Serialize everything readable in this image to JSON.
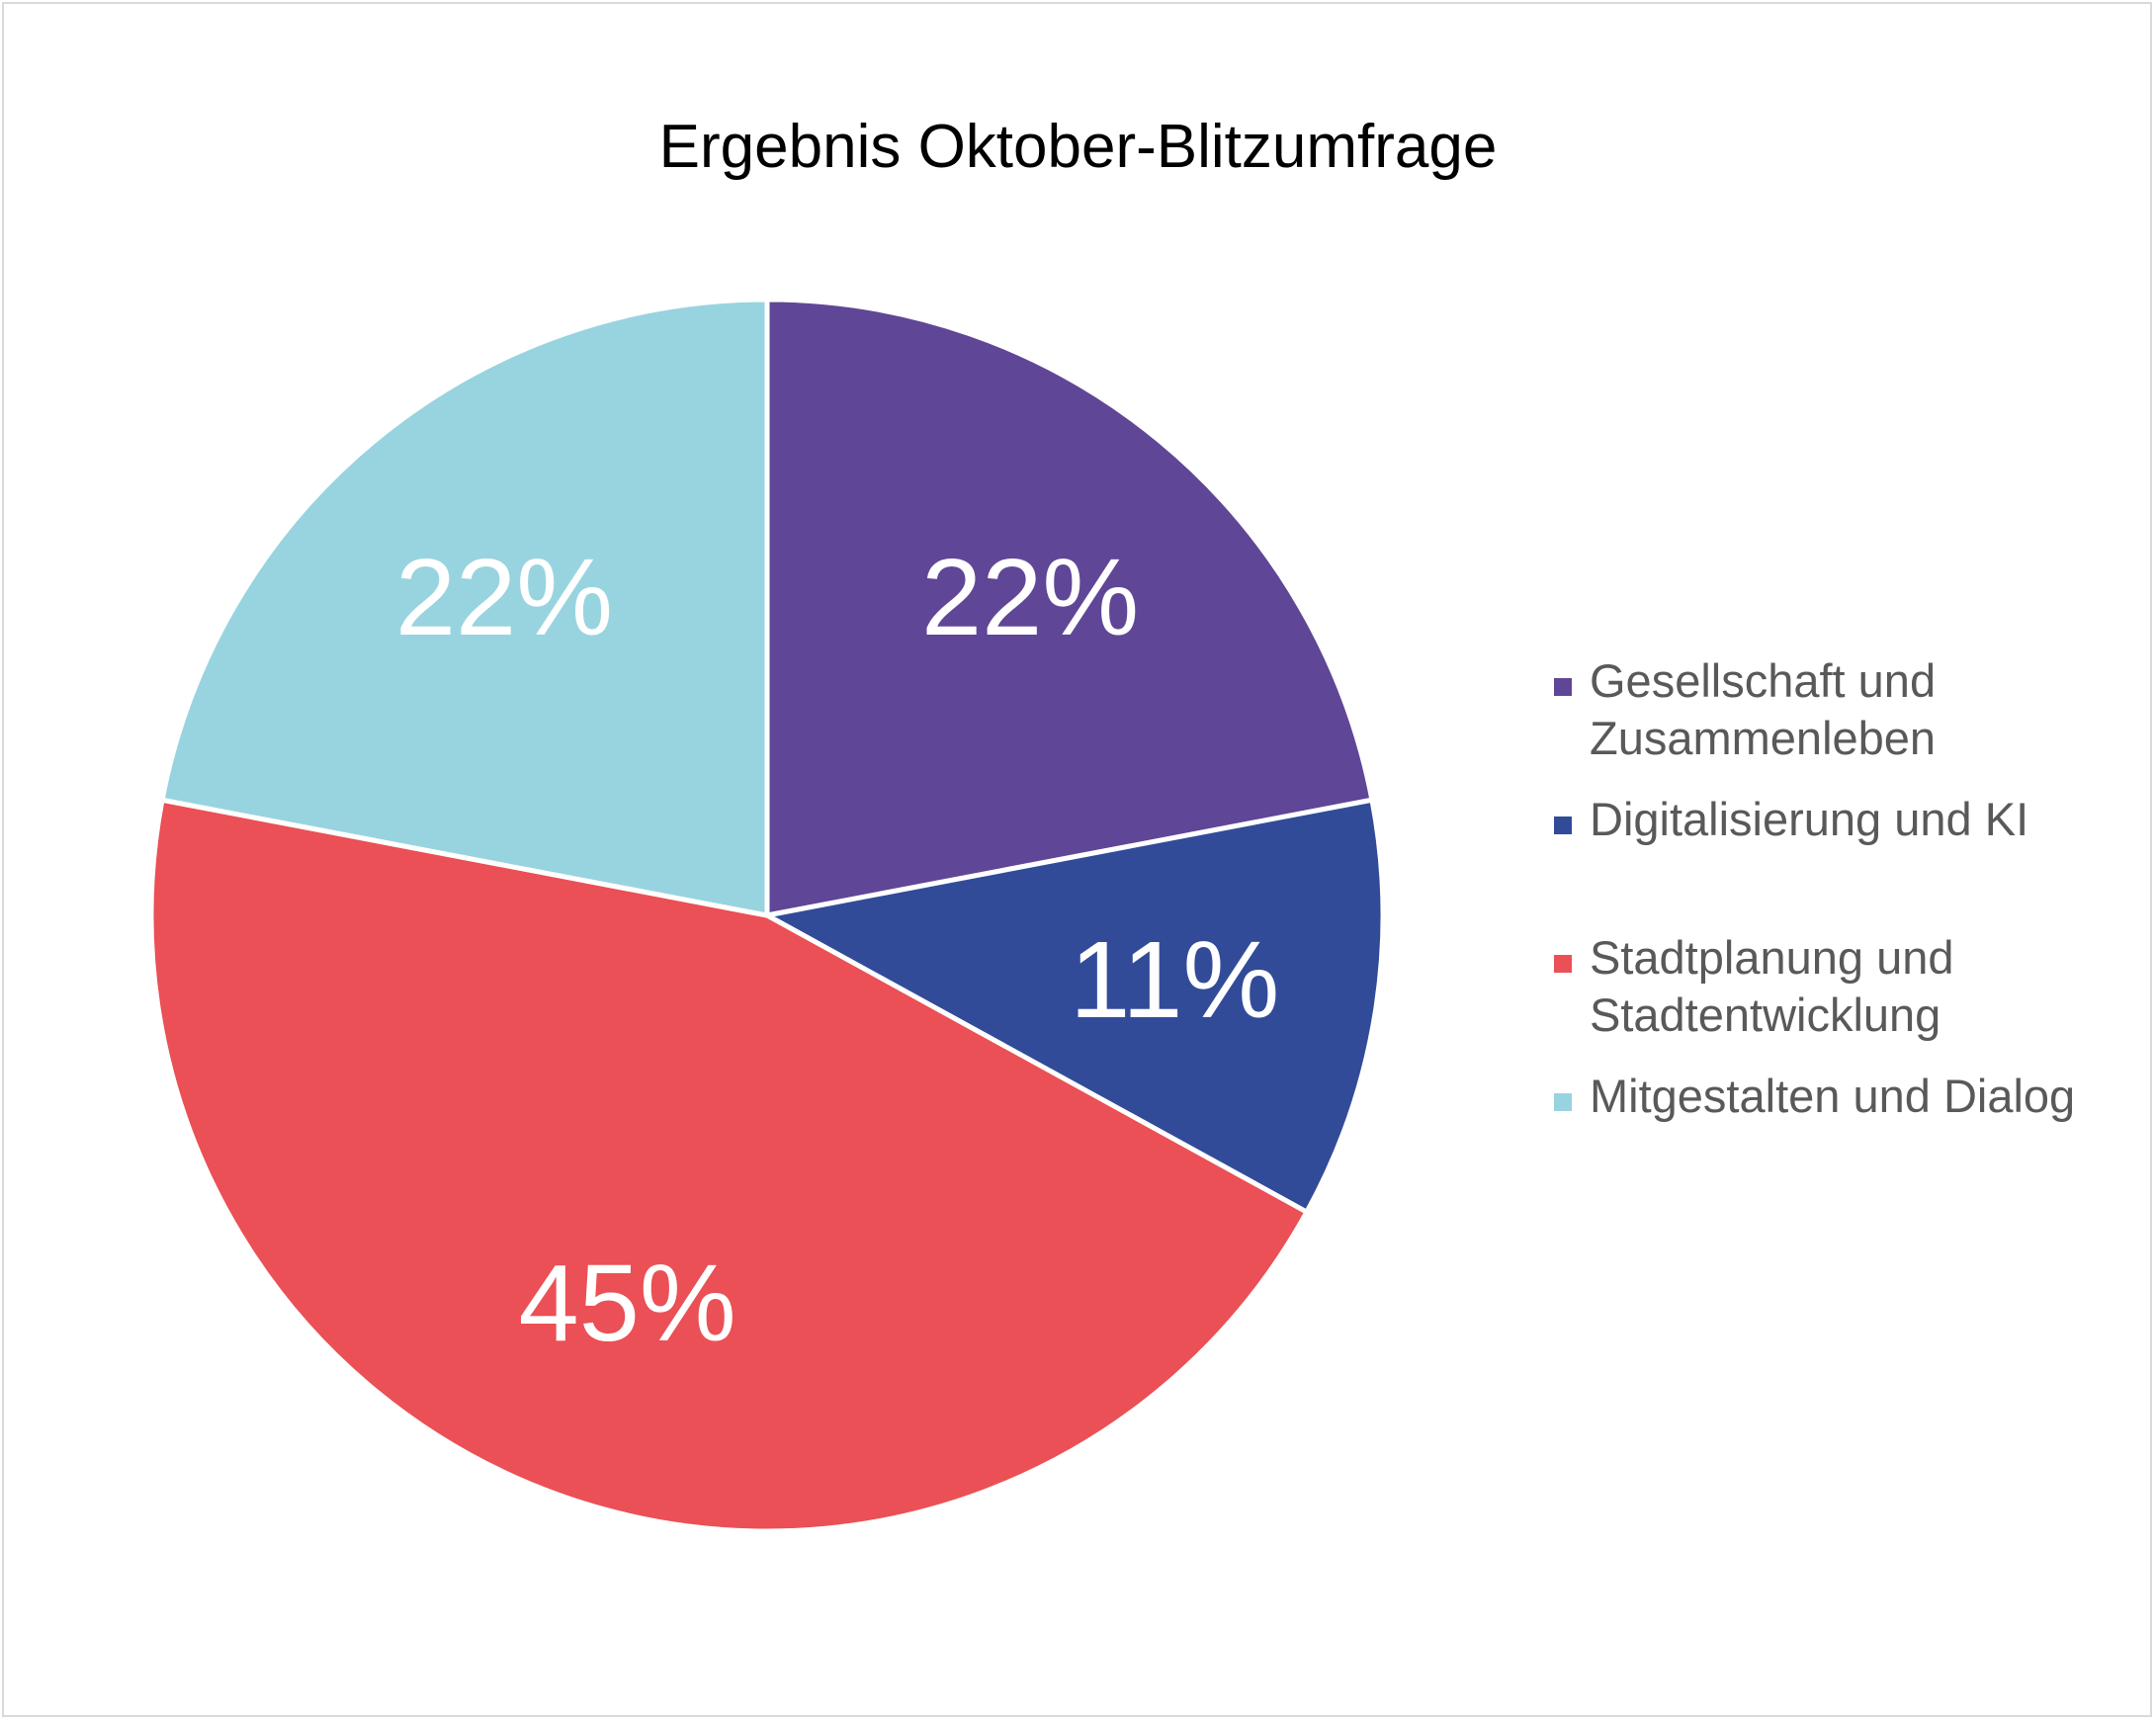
{
  "chart_data": {
    "type": "pie",
    "title": "Ergebnis Oktober-Blitzumfrage",
    "slices": [
      {
        "label": "Gesellschaft und Zusammenleben",
        "value": 22,
        "display": "22%",
        "color": "#604696"
      },
      {
        "label": "Digitalisierung und KI",
        "value": 11,
        "display": "11%",
        "color": "#324b99"
      },
      {
        "label": "Stadtplanung und Stadtentwicklung",
        "value": 45,
        "display": "45%",
        "color": "#ea5055"
      },
      {
        "label": "Mitgestalten und Dialog",
        "value": 22,
        "display": "22%",
        "color": "#98d4df"
      }
    ],
    "legend_position": "right",
    "start_angle": "12 o'clock, clockwise"
  }
}
